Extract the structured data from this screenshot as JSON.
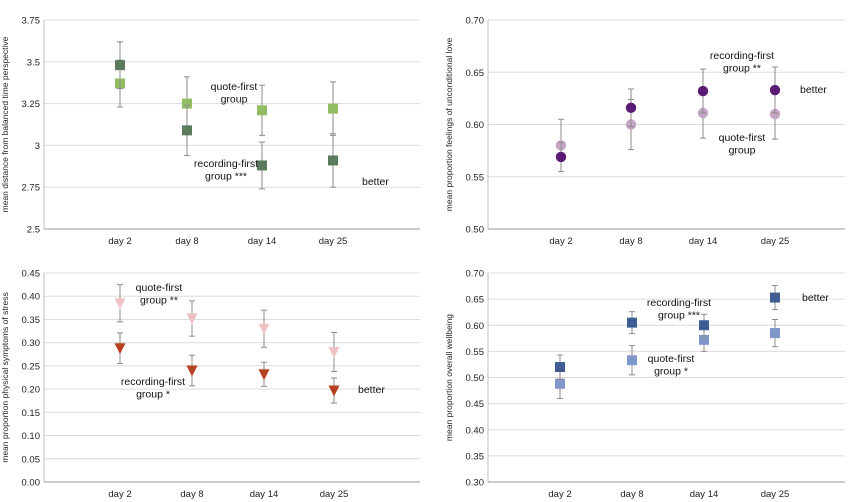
{
  "chart_data": [
    {
      "type": "scatter",
      "marker": "square",
      "ylabel": "mean distance from balanced time perspective",
      "categories": [
        "day 2",
        "day 8",
        "day 14",
        "day 25"
      ],
      "ylim": [
        2.5,
        3.75
      ],
      "yticks": [
        "2.5",
        "2.75",
        "3",
        "3.25",
        "3.5",
        "3.75"
      ],
      "grid": true,
      "series": [
        {
          "name": "quote-first group",
          "color": "#93bd63",
          "values": [
            3.37,
            3.25,
            3.21,
            3.22
          ],
          "err": [
            0.14,
            0.16,
            0.15,
            0.16
          ]
        },
        {
          "name": "recording-first group ***",
          "color": "#5c7a5c",
          "values": [
            3.48,
            3.09,
            2.88,
            2.91
          ],
          "err": [
            0.14,
            0.15,
            0.14,
            0.16
          ]
        }
      ],
      "annotations": [
        {
          "lines": [
            "quote-first",
            "group"
          ]
        },
        {
          "lines": [
            "recording-first",
            "group ***"
          ]
        },
        {
          "lines": [
            "better"
          ]
        }
      ]
    },
    {
      "type": "scatter",
      "marker": "circle",
      "ylabel": "mean proportion feelings of unconditional love",
      "categories": [
        "day 2",
        "day 8",
        "day 14",
        "day 25"
      ],
      "ylim": [
        0.5,
        0.7
      ],
      "yticks": [
        "0.50",
        "0.55",
        "0.60",
        "0.65",
        "0.70"
      ],
      "grid": true,
      "series": [
        {
          "name": "quote-first group",
          "color": "#c4a5c4",
          "values": [
            0.58,
            0.6,
            0.611,
            0.61
          ],
          "err": [
            0.025,
            0.024,
            0.024,
            0.024
          ]
        },
        {
          "name": "recording-first group **",
          "color": "#5a1c72",
          "values": [
            0.569,
            0.616,
            0.632,
            0.633
          ],
          "err": [
            0.014,
            0.018,
            0.021,
            0.022
          ]
        }
      ],
      "annotations": [
        {
          "lines": [
            "recording-first",
            "group **"
          ]
        },
        {
          "lines": [
            "quote-first",
            "group"
          ]
        },
        {
          "lines": [
            "better"
          ]
        }
      ]
    },
    {
      "type": "scatter",
      "marker": "triangle-down",
      "ylabel": "mean proportion physical symptoms of stress",
      "categories": [
        "day 2",
        "day 8",
        "day 14",
        "day 25"
      ],
      "ylim": [
        0.0,
        0.45
      ],
      "yticks": [
        "0.00",
        "0.05",
        "0.10",
        "0.15",
        "0.20",
        "0.25",
        "0.30",
        "0.35",
        "0.40",
        "0.45"
      ],
      "grid": true,
      "series": [
        {
          "name": "quote-first group **",
          "color": "#eec2c4",
          "values": [
            0.385,
            0.352,
            0.33,
            0.28
          ],
          "err": [
            0.04,
            0.038,
            0.04,
            0.042
          ]
        },
        {
          "name": "recording-first group *",
          "color": "#b5401d",
          "values": [
            0.288,
            0.24,
            0.232,
            0.197
          ],
          "err": [
            0.033,
            0.033,
            0.026,
            0.027
          ]
        }
      ],
      "annotations": [
        {
          "lines": [
            "quote-first",
            "group **"
          ]
        },
        {
          "lines": [
            "recording-first",
            "group *"
          ]
        },
        {
          "lines": [
            "better"
          ]
        }
      ]
    },
    {
      "type": "scatter",
      "marker": "square",
      "ylabel": "mean proportion overall wellbeing",
      "categories": [
        "day 2",
        "day 8",
        "day 14",
        "day 25"
      ],
      "ylim": [
        0.3,
        0.7
      ],
      "yticks": [
        "0.30",
        "0.35",
        "0.40",
        "0.45",
        "0.50",
        "0.55",
        "0.60",
        "0.65",
        "0.70"
      ],
      "grid": true,
      "series": [
        {
          "name": "quote-first group *",
          "color": "#7f98c9",
          "values": [
            0.488,
            0.533,
            0.572,
            0.585
          ],
          "err": [
            0.028,
            0.028,
            0.022,
            0.026
          ]
        },
        {
          "name": "recording-first group ***",
          "color": "#3f5d92",
          "values": [
            0.52,
            0.605,
            0.6,
            0.653
          ],
          "err": [
            0.023,
            0.021,
            0.021,
            0.023
          ]
        }
      ],
      "annotations": [
        {
          "lines": [
            "recording-first",
            "group ***"
          ]
        },
        {
          "lines": [
            "quote-first",
            "group *"
          ]
        },
        {
          "lines": [
            "better"
          ]
        }
      ]
    }
  ]
}
